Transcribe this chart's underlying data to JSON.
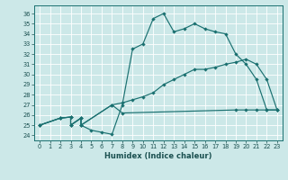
{
  "xlabel": "Humidex (Indice chaleur)",
  "bg_color": "#cce8e8",
  "line_color": "#1a7070",
  "grid_color": "#ffffff",
  "xlim": [
    -0.5,
    23.5
  ],
  "ylim": [
    23.5,
    36.8
  ],
  "yticks": [
    24,
    25,
    26,
    27,
    28,
    29,
    30,
    31,
    32,
    33,
    34,
    35,
    36
  ],
  "xticks": [
    0,
    1,
    2,
    3,
    4,
    5,
    6,
    7,
    8,
    9,
    10,
    11,
    12,
    13,
    14,
    15,
    16,
    17,
    18,
    19,
    20,
    21,
    22,
    23
  ],
  "line1_x": [
    0,
    2,
    3,
    3,
    4,
    4,
    5,
    6,
    7,
    8,
    9,
    10,
    11,
    12,
    13,
    14,
    15,
    16,
    17,
    18,
    19,
    20,
    21,
    22,
    23
  ],
  "line1_y": [
    25,
    25.7,
    25.8,
    25.0,
    25.7,
    25.0,
    24.5,
    24.3,
    24.1,
    27.0,
    32.5,
    33.0,
    35.5,
    36.0,
    34.2,
    34.5,
    35.0,
    34.5,
    34.2,
    34.0,
    32.0,
    31.0,
    29.5,
    26.5,
    26.5
  ],
  "line2_x": [
    0,
    2,
    3,
    3,
    4,
    4,
    7,
    8,
    19,
    20,
    21,
    22,
    23
  ],
  "line2_y": [
    25,
    25.7,
    25.8,
    25.0,
    25.7,
    25.0,
    27.0,
    26.2,
    26.5,
    26.5,
    26.5,
    26.5,
    26.5
  ],
  "line3_x": [
    0,
    2,
    3,
    3,
    4,
    4,
    7,
    8,
    9,
    10,
    11,
    12,
    13,
    14,
    15,
    16,
    17,
    18,
    19,
    20,
    21,
    22,
    23
  ],
  "line3_y": [
    25,
    25.7,
    25.8,
    25.0,
    25.7,
    25.0,
    27.0,
    27.2,
    27.5,
    27.8,
    28.2,
    29.0,
    29.5,
    30.0,
    30.5,
    30.5,
    30.7,
    31.0,
    31.2,
    31.5,
    31.0,
    29.5,
    26.5
  ]
}
